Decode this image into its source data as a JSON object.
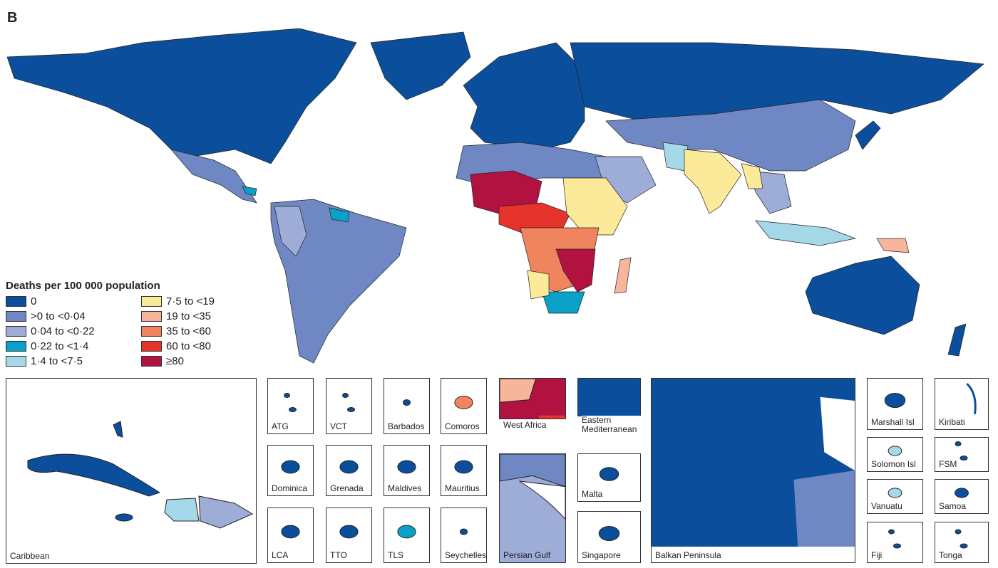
{
  "panel_label": "B",
  "legend": {
    "title": "Deaths per 100 000 population",
    "items": [
      {
        "label": "0",
        "color": "#0b4f9c"
      },
      {
        "label": ">0  to <0·04",
        "color": "#6f88c4"
      },
      {
        "label": "0·04 to <0·22",
        "color": "#9eacd8"
      },
      {
        "label": "0·22 to <1·4",
        "color": "#0ba0c7"
      },
      {
        "label": "1·4 to <7·5",
        "color": "#a5d9ea"
      },
      {
        "label": "7·5 to <19",
        "color": "#fcea9b"
      },
      {
        "label": "19 to <35",
        "color": "#f7b69c"
      },
      {
        "label": "35 to <60",
        "color": "#f0845e"
      },
      {
        "label": "60 to <80",
        "color": "#e5322b"
      },
      {
        "label": "≥80",
        "color": "#b1123f"
      }
    ]
  },
  "insets": [
    {
      "label": "Caribbean"
    },
    {
      "label": "ATG"
    },
    {
      "label": "VCT"
    },
    {
      "label": "Barbados"
    },
    {
      "label": "Comoros"
    },
    {
      "label": "West Africa"
    },
    {
      "label": "Eastern Mediterranean"
    },
    {
      "label": "Dominica"
    },
    {
      "label": "Grenada"
    },
    {
      "label": "Maldives"
    },
    {
      "label": "Mauritius"
    },
    {
      "label": "Malta"
    },
    {
      "label": "LCA"
    },
    {
      "label": "TTO"
    },
    {
      "label": "TLS"
    },
    {
      "label": "Seychelles"
    },
    {
      "label": "Persian Gulf"
    },
    {
      "label": "Singapore"
    },
    {
      "label": "Balkan Peninsula"
    },
    {
      "label": "Marshall Isl"
    },
    {
      "label": "Kiribati"
    },
    {
      "label": "Solomon Isl"
    },
    {
      "label": "FSM"
    },
    {
      "label": "Vanuatu"
    },
    {
      "label": "Samoa"
    },
    {
      "label": "Fiji"
    },
    {
      "label": "Tonga"
    }
  ]
}
